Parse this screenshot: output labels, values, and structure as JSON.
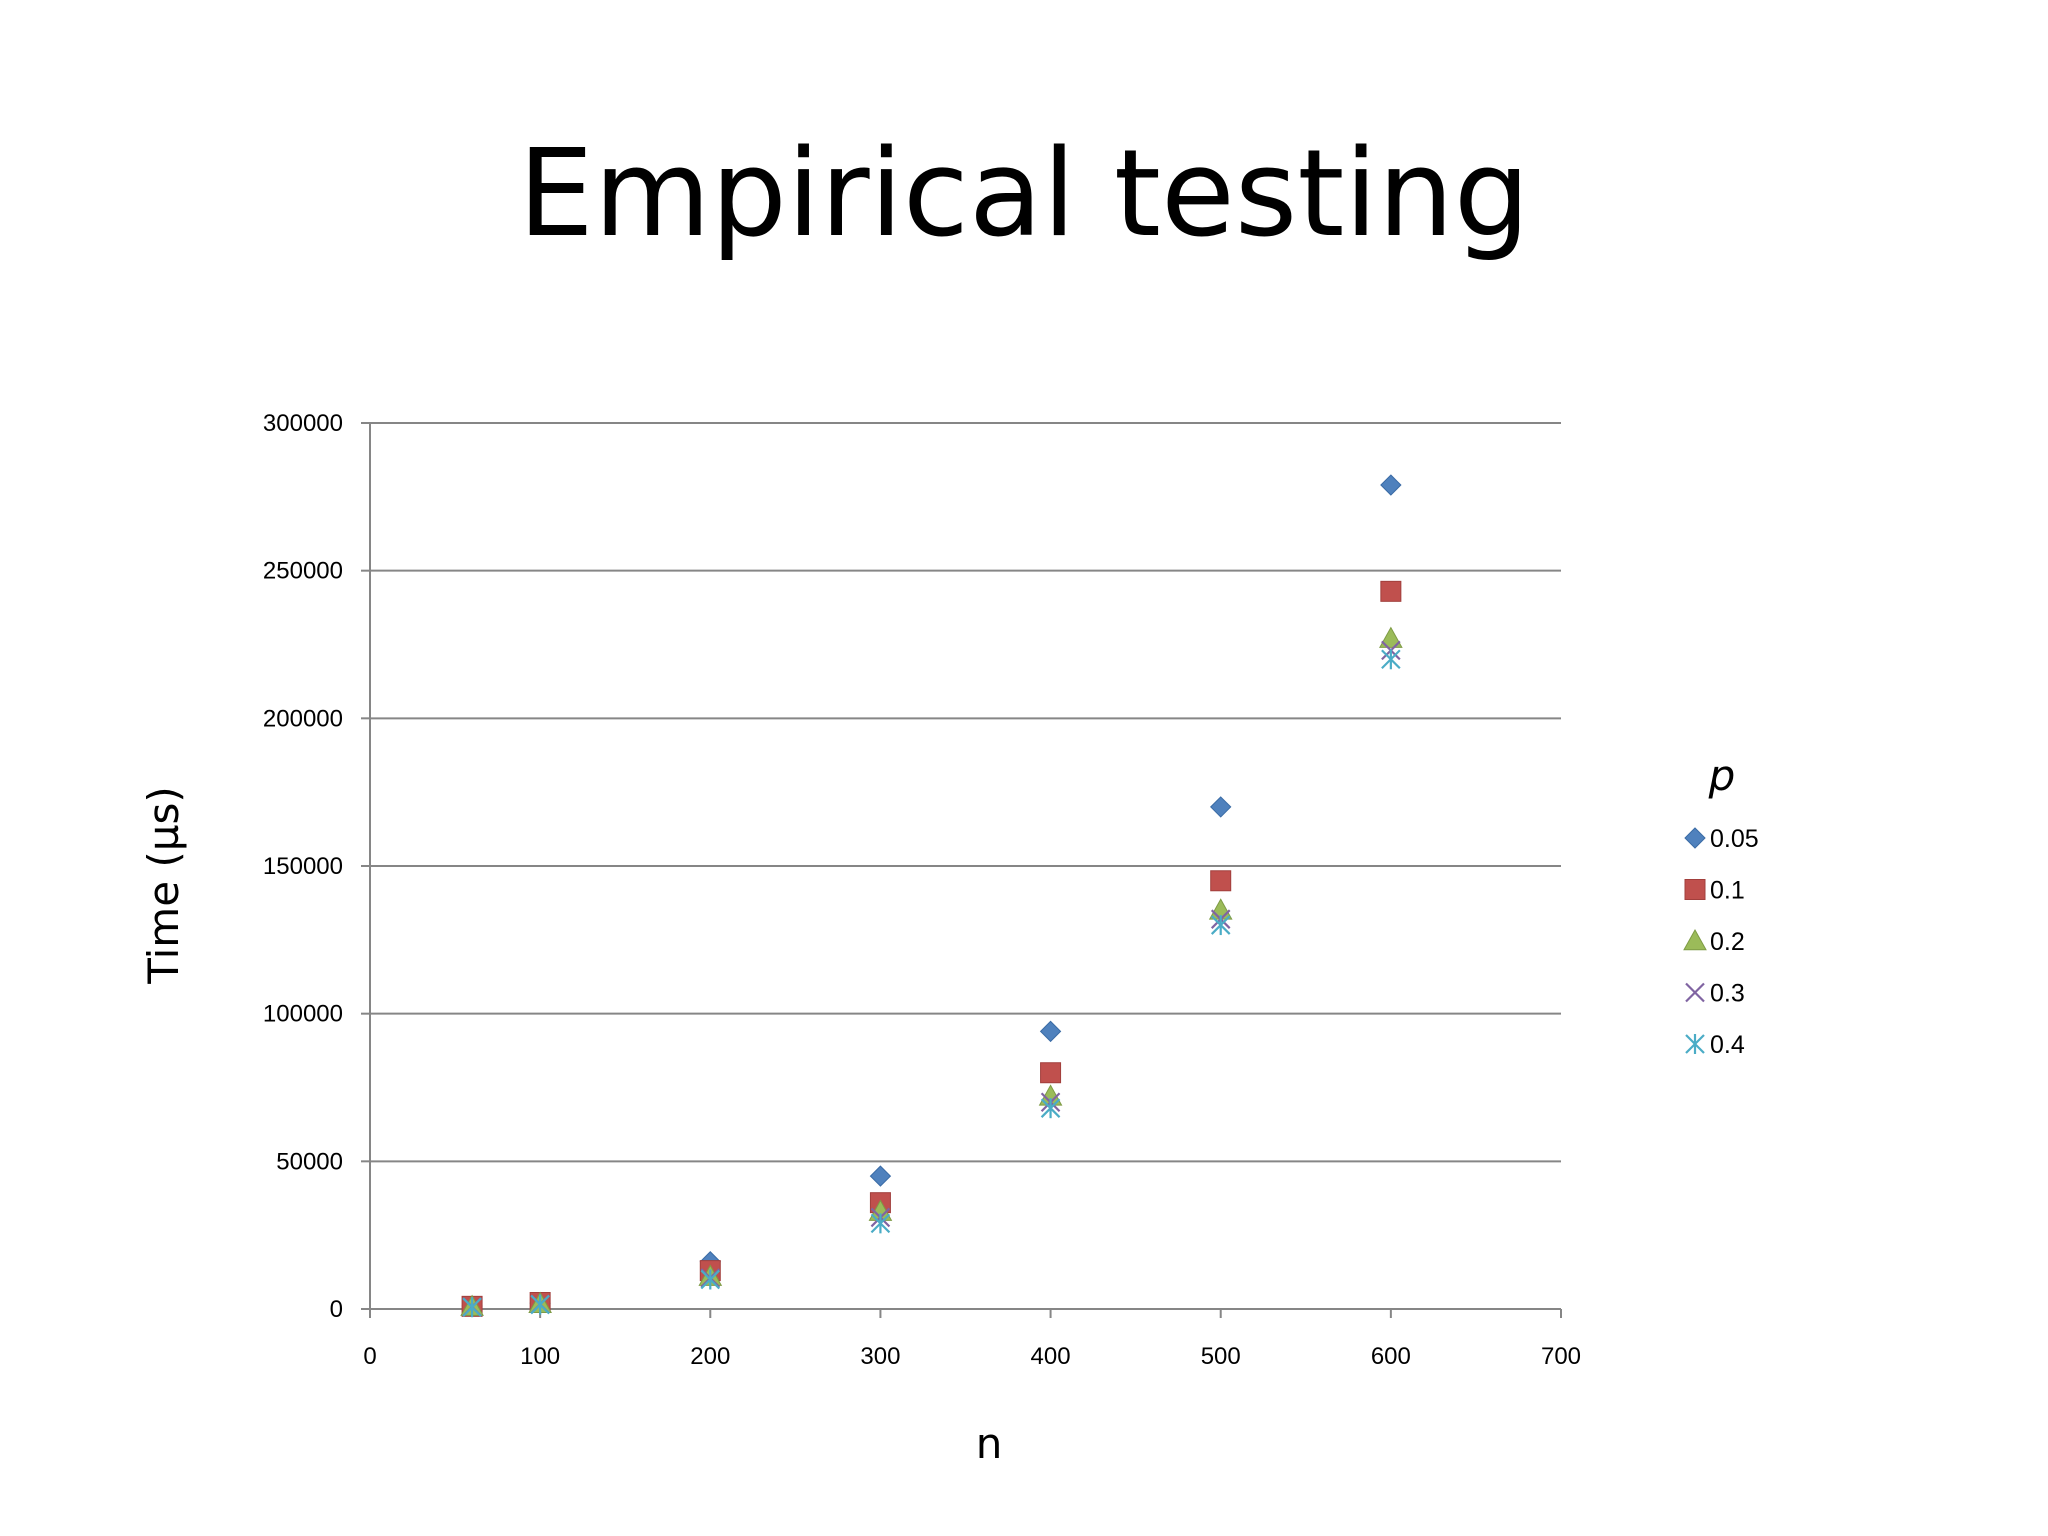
{
  "slide": {
    "title": "Empirical testing"
  },
  "chart_data": {
    "type": "scatter",
    "title": "",
    "xlabel": "n",
    "ylabel": "Time (µs)",
    "xlim": [
      0,
      700
    ],
    "ylim": [
      0,
      300000
    ],
    "x_ticks": [
      0,
      100,
      200,
      300,
      400,
      500,
      600,
      700
    ],
    "y_ticks": [
      0,
      50000,
      100000,
      150000,
      200000,
      250000,
      300000
    ],
    "grid": "horizontal",
    "legend": {
      "title": "p",
      "position": "right"
    },
    "series": [
      {
        "name": "0.05",
        "marker": "diamond",
        "color": "#4F81BD",
        "x": [
          60,
          100,
          200,
          300,
          400,
          500,
          600
        ],
        "y": [
          1000,
          2000,
          16000,
          45000,
          94000,
          170000,
          279000
        ]
      },
      {
        "name": "0.1",
        "marker": "square",
        "color": "#C0504D",
        "x": [
          60,
          100,
          200,
          300,
          400,
          500,
          600
        ],
        "y": [
          900,
          2200,
          13000,
          36000,
          80000,
          145000,
          243000
        ]
      },
      {
        "name": "0.2",
        "marker": "triangle",
        "color": "#9BBB59",
        "x": [
          60,
          100,
          200,
          300,
          400,
          500,
          600
        ],
        "y": [
          800,
          1800,
          11000,
          33000,
          72000,
          135000,
          227000
        ]
      },
      {
        "name": "0.3",
        "marker": "x",
        "color": "#8064A2",
        "x": [
          60,
          100,
          200,
          300,
          400,
          500,
          600
        ],
        "y": [
          700,
          1600,
          10500,
          31000,
          70000,
          132000,
          223000
        ]
      },
      {
        "name": "0.4",
        "marker": "star",
        "color": "#4BACC6",
        "x": [
          60,
          100,
          200,
          300,
          400,
          500,
          600
        ],
        "y": [
          600,
          1500,
          10000,
          29000,
          68000,
          130000,
          220000
        ]
      }
    ]
  }
}
